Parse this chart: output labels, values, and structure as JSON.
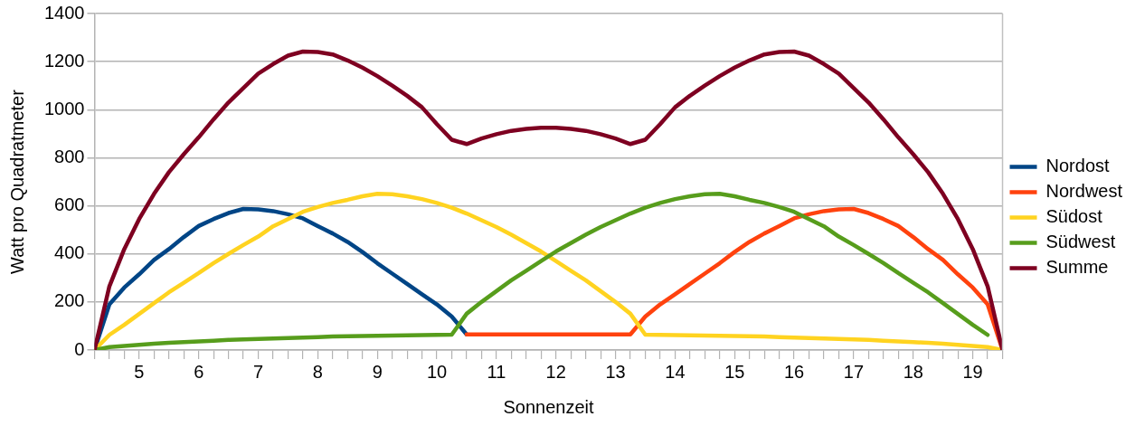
{
  "chart_data": {
    "type": "line",
    "xlabel": "Sonnenzeit",
    "ylabel": "Watt pro Quadratmeter",
    "x": [
      4.25,
      4.5,
      4.75,
      5,
      5.25,
      5.5,
      5.75,
      6,
      6.25,
      6.5,
      6.75,
      7,
      7.25,
      7.5,
      7.75,
      8,
      8.25,
      8.5,
      8.75,
      9,
      9.25,
      9.5,
      9.75,
      10,
      10.25,
      10.5,
      10.75,
      11,
      11.25,
      11.5,
      11.75,
      12,
      12.25,
      12.5,
      12.75,
      13,
      13.25,
      13.5,
      13.75,
      14,
      14.25,
      14.5,
      14.75,
      15,
      15.25,
      15.5,
      15.75,
      16,
      16.25,
      16.5,
      16.75,
      17,
      17.25,
      17.5,
      17.75,
      18,
      18.25,
      18.5,
      18.75,
      19,
      19.25,
      19.5
    ],
    "series": [
      {
        "name": "Nordost",
        "color": "#004586",
        "values": [
          0,
          190,
          260,
          315,
          375,
          420,
          470,
          516,
          545,
          570,
          587,
          585,
          578,
          565,
          548,
          516,
          485,
          450,
          408,
          361,
          318,
          275,
          232,
          190,
          139,
          65,
          null,
          null,
          null,
          null,
          null,
          null,
          null,
          null,
          null,
          null,
          null,
          null,
          null,
          null,
          null,
          null,
          null,
          null,
          null,
          null,
          null,
          null,
          null,
          null,
          null,
          null,
          null,
          null,
          null,
          null,
          null,
          null,
          null,
          null,
          null,
          null
        ]
      },
      {
        "name": "Nordwest",
        "color": "#ff420e",
        "values": [
          null,
          null,
          null,
          null,
          null,
          null,
          null,
          null,
          null,
          null,
          null,
          null,
          null,
          null,
          null,
          null,
          null,
          null,
          null,
          null,
          null,
          null,
          null,
          null,
          null,
          65,
          65,
          65,
          65,
          65,
          65,
          65,
          65,
          65,
          65,
          65,
          65,
          139,
          190,
          232,
          275,
          318,
          361,
          408,
          450,
          485,
          516,
          548,
          565,
          578,
          585,
          587,
          570,
          545,
          516,
          470,
          420,
          375,
          315,
          260,
          190,
          0
        ]
      },
      {
        "name": "Südost",
        "color": "#ffd320",
        "values": [
          0,
          63,
          105,
          150,
          195,
          240,
          280,
          320,
          362,
          400,
          437,
          472,
          515,
          545,
          575,
          595,
          612,
          625,
          640,
          650,
          648,
          640,
          628,
          612,
          592,
          568,
          540,
          512,
          480,
          445,
          410,
          370,
          330,
          290,
          245,
          200,
          151,
          64,
          63,
          62,
          61,
          60,
          59,
          58,
          57,
          56,
          54,
          52,
          50,
          48,
          46,
          44,
          42,
          39,
          36,
          33,
          30,
          26,
          22,
          17,
          12,
          0
        ]
      },
      {
        "name": "Südwest",
        "color": "#579d1c",
        "values": [
          0,
          12,
          17,
          22,
          26,
          30,
          33,
          36,
          39,
          42,
          44,
          46,
          48,
          50,
          52,
          54,
          56,
          57,
          58,
          59,
          60,
          61,
          62,
          63,
          64,
          151,
          200,
          245,
          290,
          330,
          370,
          410,
          445,
          480,
          512,
          540,
          568,
          592,
          612,
          628,
          640,
          648,
          650,
          640,
          625,
          612,
          595,
          575,
          545,
          515,
          472,
          437,
          400,
          362,
          320,
          280,
          240,
          195,
          150,
          105,
          63,
          null
        ]
      },
      {
        "name": "Summe",
        "color": "#7e0021",
        "values": [
          0,
          265,
          420,
          545,
          650,
          740,
          815,
          885,
          960,
          1030,
          1090,
          1150,
          1190,
          1225,
          1242,
          1240,
          1230,
          1205,
          1175,
          1140,
          1100,
          1058,
          1010,
          940,
          875,
          857,
          880,
          898,
          912,
          920,
          925,
          925,
          920,
          912,
          898,
          880,
          857,
          875,
          940,
          1010,
          1058,
          1100,
          1140,
          1175,
          1205,
          1230,
          1240,
          1242,
          1225,
          1190,
          1150,
          1090,
          1030,
          960,
          885,
          815,
          740,
          650,
          545,
          420,
          265,
          0
        ]
      }
    ],
    "xlim": [
      4.25,
      19.5
    ],
    "xticks": [
      {
        "value": 4.25,
        "label": null
      },
      {
        "value": 4.5,
        "label": null
      },
      {
        "value": 4.75,
        "label": null
      },
      5,
      {
        "value": 5.25,
        "label": null
      },
      {
        "value": 5.5,
        "label": null
      },
      {
        "value": 5.75,
        "label": null
      },
      6,
      {
        "value": 6.25,
        "label": null
      },
      {
        "value": 6.5,
        "label": null
      },
      {
        "value": 6.75,
        "label": null
      },
      7,
      {
        "value": 7.25,
        "label": null
      },
      {
        "value": 7.5,
        "label": null
      },
      {
        "value": 7.75,
        "label": null
      },
      8,
      {
        "value": 8.25,
        "label": null
      },
      {
        "value": 8.5,
        "label": null
      },
      {
        "value": 8.75,
        "label": null
      },
      9,
      {
        "value": 9.25,
        "label": null
      },
      {
        "value": 9.5,
        "label": null
      },
      {
        "value": 9.75,
        "label": null
      },
      10,
      {
        "value": 10.25,
        "label": null
      },
      {
        "value": 10.5,
        "label": null
      },
      {
        "value": 10.75,
        "label": null
      },
      11,
      {
        "value": 11.25,
        "label": null
      },
      {
        "value": 11.5,
        "label": null
      },
      {
        "value": 11.75,
        "label": null
      },
      12,
      {
        "value": 12.25,
        "label": null
      },
      {
        "value": 12.5,
        "label": null
      },
      {
        "value": 12.75,
        "label": null
      },
      13,
      {
        "value": 13.25,
        "label": null
      },
      {
        "value": 13.5,
        "label": null
      },
      {
        "value": 13.75,
        "label": null
      },
      14,
      {
        "value": 14.25,
        "label": null
      },
      {
        "value": 14.5,
        "label": null
      },
      {
        "value": 14.75,
        "label": null
      },
      15,
      {
        "value": 15.25,
        "label": null
      },
      {
        "value": 15.5,
        "label": null
      },
      {
        "value": 15.75,
        "label": null
      },
      16,
      {
        "value": 16.25,
        "label": null
      },
      {
        "value": 16.5,
        "label": null
      },
      {
        "value": 16.75,
        "label": null
      },
      17,
      {
        "value": 17.25,
        "label": null
      },
      {
        "value": 17.5,
        "label": null
      },
      {
        "value": 17.75,
        "label": null
      },
      18,
      {
        "value": 18.25,
        "label": null
      },
      {
        "value": 18.5,
        "label": null
      },
      {
        "value": 18.75,
        "label": null
      },
      19,
      {
        "value": 19.25,
        "label": null
      },
      {
        "value": 19.5,
        "label": null
      }
    ],
    "ylim": [
      0,
      1400
    ],
    "yticks": [
      0,
      200,
      400,
      600,
      800,
      1000,
      1200,
      1400
    ],
    "grid": "y",
    "legend": "right",
    "marker": "none",
    "line_style": "solid"
  }
}
